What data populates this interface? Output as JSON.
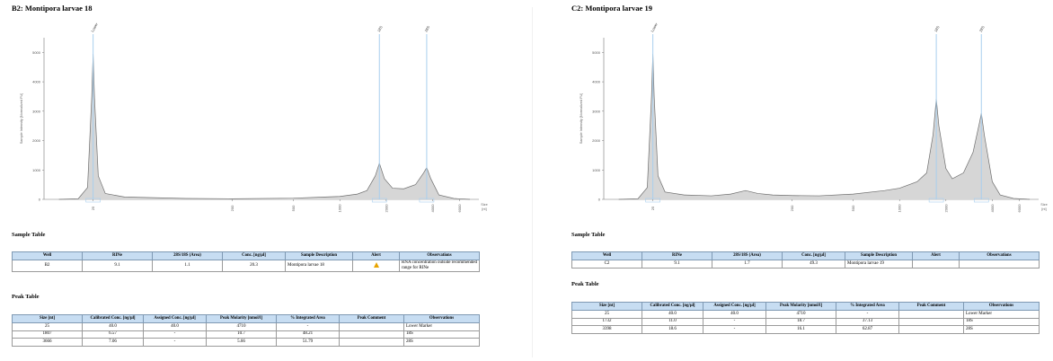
{
  "panels": [
    {
      "title": "B2: Montipora larvae 18",
      "chart": {
        "ylabel": "Sample Intensity [Normalized FU]",
        "xlabel": "Size [nt]",
        "y_ticks": [
          "0",
          "1000",
          "2000",
          "3000",
          "4000",
          "5000"
        ],
        "x_ticks": [
          "25",
          "200",
          "500",
          "1000",
          "2000",
          "4000",
          "6000"
        ],
        "markers": [
          "Lower",
          "18S",
          "28S"
        ],
        "line_color": "#a9cfee",
        "fill_color": "#d6d6d6"
      },
      "sample_table_title": "Sample Table",
      "sample_headers": [
        "Well",
        "RINe",
        "28S/18S (Area)",
        "Conc. [ng/µl]",
        "Sample Description",
        "Alert",
        "Observations"
      ],
      "sample_row": {
        "well": "B2",
        "rine": "9.1",
        "ratio": "1.1",
        "conc": "20.3",
        "description": "Montipora larvae 18",
        "alert": "warning-icon",
        "observations": "RNA concentration outside recommended range for RINe"
      },
      "peak_table_title": "Peak Table",
      "peak_headers": [
        "Size [nt]",
        "Calibrated Conc. [ng/µl]",
        "Assigned Conc. [ng/µl]",
        "Peak Molarity [nmol/l]",
        "% Integrated Area",
        "Peak Comment",
        "Observations"
      ],
      "peak_rows": [
        {
          "size": "25",
          "cal": "40.0",
          "assigned": "40.0",
          "molarity": "4710",
          "area": "-",
          "comment": "",
          "obs": "Lower Marker"
        },
        {
          "size": "1807",
          "cal": "6.57",
          "assigned": "-",
          "molarity": "10.7",
          "area": "48.21",
          "comment": "",
          "obs": "18S"
        },
        {
          "size": "3666",
          "cal": "7.06",
          "assigned": "-",
          "molarity": "5.66",
          "area": "51.79",
          "comment": "",
          "obs": "28S"
        }
      ]
    },
    {
      "title": "C2: Montipora larvae 19",
      "chart": {
        "ylabel": "Sample Intensity [Normalized FU]",
        "xlabel": "Size [nt]",
        "y_ticks": [
          "0",
          "1000",
          "2000",
          "3000",
          "4000",
          "5000"
        ],
        "x_ticks": [
          "25",
          "200",
          "500",
          "1000",
          "2000",
          "4000",
          "6000"
        ],
        "markers": [
          "Lower",
          "18S",
          "28S"
        ],
        "line_color": "#a9cfee",
        "fill_color": "#d6d6d6"
      },
      "sample_table_title": "Sample Table",
      "sample_headers": [
        "Well",
        "RINe",
        "28S/18S (Area)",
        "Conc. [ng/µl]",
        "Sample Description",
        "Alert",
        "Observations"
      ],
      "sample_row": {
        "well": "C2",
        "rine": "9.1",
        "ratio": "1.7",
        "conc": "49.3",
        "description": "Montipora larvae 19",
        "alert": "",
        "observations": ""
      },
      "peak_table_title": "Peak Table",
      "peak_headers": [
        "Size [nt]",
        "Calibrated Conc. [ng/µl]",
        "Assigned Conc. [ng/µl]",
        "Peak Molarity [nmol/l]",
        "% Integrated Area",
        "Peak Comment",
        "Observations"
      ],
      "peak_rows": [
        {
          "size": "25",
          "cal": "40.0",
          "assigned": "40.0",
          "molarity": "4710",
          "area": "-",
          "comment": "",
          "obs": "Lower Marker"
        },
        {
          "size": "1732",
          "cal": "11.0",
          "assigned": "-",
          "molarity": "18.7",
          "area": "37.13",
          "comment": "",
          "obs": "18S"
        },
        {
          "size": "3398",
          "cal": "18.6",
          "assigned": "-",
          "molarity": "16.1",
          "area": "62.87",
          "comment": "",
          "obs": "28S"
        }
      ]
    }
  ],
  "chart_data": [
    {
      "type": "line",
      "xlabel": "Size [nt]",
      "ylabel": "Sample Intensity [Normalized FU]",
      "ylim": [
        0,
        5500
      ],
      "x_scale": "log",
      "x_ticks": [
        25,
        200,
        500,
        1000,
        2000,
        4000,
        6000
      ],
      "x": [
        15,
        20,
        23,
        24.5,
        25,
        25.5,
        27,
        30,
        40,
        100,
        200,
        500,
        800,
        1000,
        1300,
        1500,
        1700,
        1807,
        1950,
        2200,
        2600,
        3100,
        3500,
        3666,
        3900,
        4400,
        5500,
        7000
      ],
      "values": [
        0,
        20,
        400,
        3500,
        4950,
        3500,
        800,
        200,
        80,
        30,
        20,
        40,
        80,
        100,
        180,
        300,
        800,
        1230,
        700,
        380,
        360,
        500,
        900,
        1080,
        700,
        150,
        30,
        0
      ],
      "markers": [
        {
          "label": "Lower",
          "x": 25
        },
        {
          "label": "18S",
          "x": 1807
        },
        {
          "label": "28S",
          "x": 3666
        }
      ]
    },
    {
      "type": "line",
      "xlabel": "Size [nt]",
      "ylabel": "Sample Intensity [Normalized FU]",
      "ylim": [
        0,
        5500
      ],
      "x_scale": "log",
      "x_ticks": [
        25,
        200,
        500,
        1000,
        2000,
        4000,
        6000
      ],
      "x": [
        15,
        20,
        23,
        24.5,
        25,
        25.5,
        27,
        30,
        40,
        60,
        80,
        100,
        120,
        150,
        200,
        300,
        500,
        800,
        1000,
        1300,
        1500,
        1650,
        1732,
        1800,
        2000,
        2200,
        2600,
        3000,
        3300,
        3398,
        3550,
        4000,
        4500,
        5500,
        7000
      ],
      "values": [
        0,
        20,
        400,
        3500,
        4950,
        3500,
        800,
        250,
        150,
        120,
        180,
        300,
        200,
        150,
        130,
        120,
        180,
        300,
        380,
        600,
        900,
        2200,
        3420,
        2500,
        1050,
        700,
        900,
        1600,
        2600,
        2930,
        2200,
        600,
        150,
        30,
        0
      ],
      "markers": [
        {
          "label": "Lower",
          "x": 25
        },
        {
          "label": "18S",
          "x": 1732
        },
        {
          "label": "28S",
          "x": 3398
        }
      ]
    }
  ]
}
